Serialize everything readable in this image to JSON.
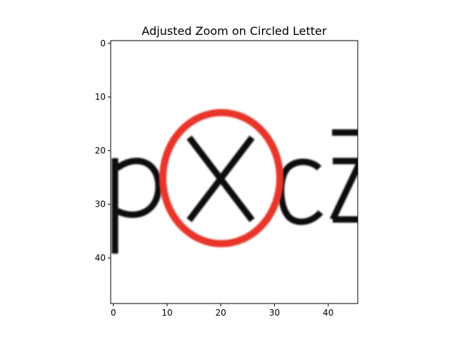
{
  "chart_data": {
    "type": "heatmap",
    "title": "Adjusted Zoom on Circled Letter",
    "xlabel": "",
    "ylabel": "",
    "image_extent": {
      "x": [
        -0.5,
        45.5
      ],
      "y": [
        48.5,
        -0.5
      ]
    },
    "y_axis_inverted": true,
    "x_ticks": [
      0,
      10,
      20,
      30,
      40
    ],
    "y_ticks": [
      0,
      10,
      20,
      30,
      40
    ],
    "grid": false,
    "visible_text": "pxcz",
    "highlighted_letter": "x",
    "annotation": {
      "shape": "ellipse",
      "color": "#e8342a",
      "center": [
        20,
        25
      ],
      "radii": [
        11,
        12.5
      ]
    }
  }
}
